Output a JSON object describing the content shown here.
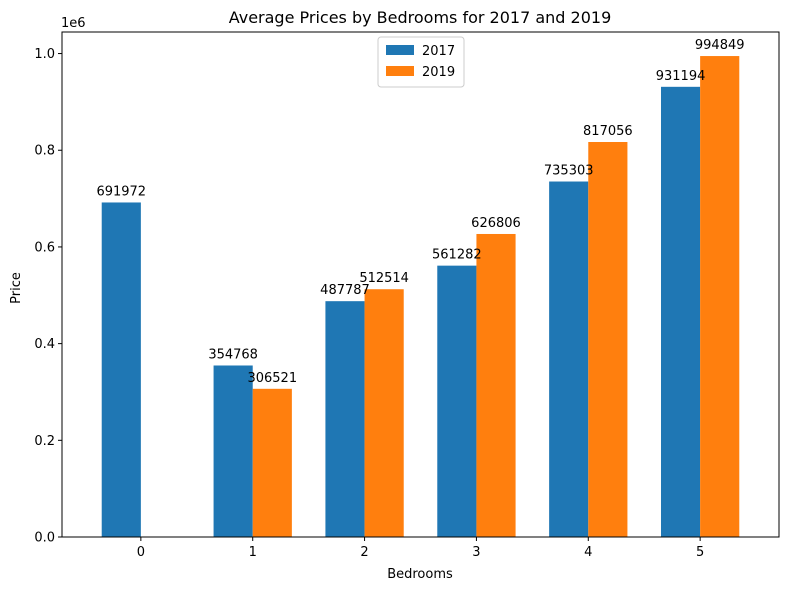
{
  "chart_data": {
    "type": "bar",
    "title": "Average Prices by Bedrooms for 2017 and 2019",
    "xlabel": "Bedrooms",
    "ylabel": "Price",
    "y_scale_label": "1e6",
    "categories": [
      "0",
      "1",
      "2",
      "3",
      "4",
      "5"
    ],
    "series": [
      {
        "name": "2017",
        "color": "#1f77b4",
        "values": [
          691972,
          354768,
          487787,
          561282,
          735303,
          931194
        ]
      },
      {
        "name": "2019",
        "color": "#ff7f0e",
        "values": [
          null,
          306521,
          512514,
          626806,
          817056,
          994849
        ]
      }
    ],
    "ylim": [
      0,
      1044591
    ],
    "yticks": [
      0,
      200000,
      400000,
      600000,
      800000,
      1000000
    ],
    "ytick_labels": [
      "0.0",
      "0.2",
      "0.4",
      "0.6",
      "0.8",
      "1.0"
    ],
    "legend_position": "top-center",
    "grid": false
  }
}
